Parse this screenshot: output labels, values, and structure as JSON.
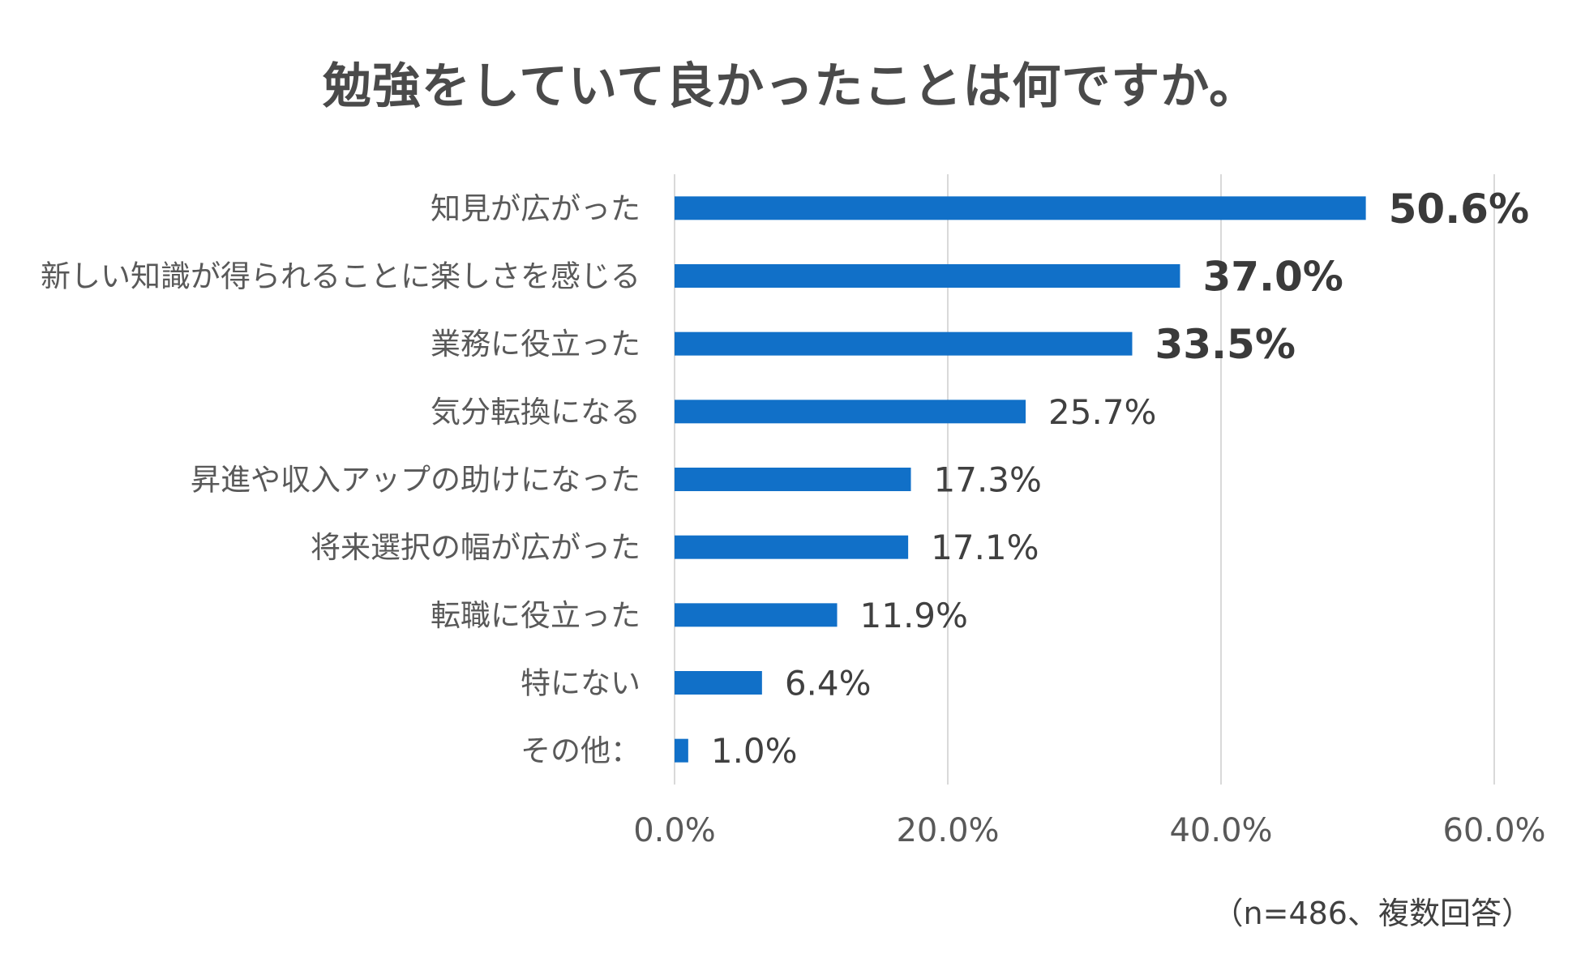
{
  "title": "勉強をしていて良かったことは何ですか。",
  "note": "（n=486、複数回答）",
  "chart_data": {
    "type": "bar",
    "orientation": "horizontal",
    "title": "勉強をしていて良かったことは何ですか。",
    "categories": [
      "知見が広がった",
      "新しい知識が得られることに楽しさを感じる",
      "業務に役立った",
      "気分転換になる",
      "昇進や収入アップの助けになった",
      "将来選択の幅が広がった",
      "転職に役立った",
      "特にない",
      "その他："
    ],
    "values": [
      50.6,
      37.0,
      33.5,
      25.7,
      17.3,
      17.1,
      11.9,
      6.4,
      1.0
    ],
    "value_labels": [
      "50.6%",
      "37.0%",
      "33.5%",
      "25.7%",
      "17.3%",
      "17.1%",
      "11.9%",
      "6.4%",
      "1.0%"
    ],
    "bold_labels": [
      true,
      true,
      true,
      false,
      false,
      false,
      false,
      false,
      false
    ],
    "xlim": [
      0,
      60
    ],
    "xticks": [
      0,
      20,
      40,
      60
    ],
    "xtick_labels": [
      "0.0%",
      "20.0%",
      "40.0%",
      "60.0%"
    ],
    "grid": true,
    "bar_color": "#1170c8",
    "grid_color": "#d9d9d9"
  }
}
